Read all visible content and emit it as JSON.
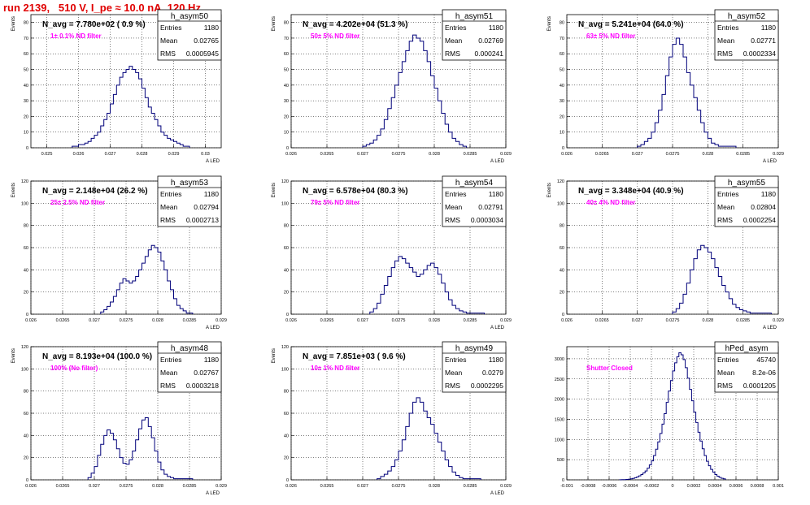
{
  "title": "run 2139,   510 V, I_pe ≈ 10.0 nA, 120 Hz",
  "chart_data": [
    {
      "type": "bar",
      "hist_name": "h_asym50",
      "stats": [
        [
          "Entries",
          "1180"
        ],
        [
          "Mean",
          "0.02765"
        ],
        [
          "RMS",
          "0.0005945"
        ]
      ],
      "n_avg": "N_avg = 7.780e+02 ( 0.9 %)",
      "filter": "1± 0.1% ND filter",
      "ylabel": "Events",
      "xlabel": "A_LED",
      "xlim": [
        0.0245,
        0.0305
      ],
      "ylim": [
        0,
        85
      ],
      "xticks": [
        0.025,
        0.026,
        0.027,
        0.028,
        0.029,
        0.03
      ],
      "xtick_labels": [
        "0.025",
        "0.026",
        "0.027",
        "0.028",
        "0.029",
        "0.03"
      ],
      "yticks": [
        0,
        10,
        20,
        30,
        40,
        50,
        60,
        70,
        80
      ],
      "yticks_labels": [
        "0",
        "10",
        "20",
        "30",
        "40",
        "50",
        "60",
        "70",
        "80"
      ],
      "bins": {
        "min": 0.0258,
        "max": 0.0295,
        "width": 0.0001,
        "counts": [
          1,
          1,
          2,
          2,
          3,
          4,
          6,
          8,
          10,
          14,
          18,
          22,
          28,
          34,
          40,
          45,
          48,
          50,
          52,
          50,
          48,
          44,
          38,
          32,
          26,
          22,
          18,
          14,
          10,
          8,
          6,
          5,
          4,
          3,
          2,
          1,
          1
        ]
      }
    },
    {
      "type": "bar",
      "hist_name": "h_asym51",
      "stats": [
        [
          "Entries",
          "1180"
        ],
        [
          "Mean",
          "0.02769"
        ],
        [
          "RMS",
          "0.000241"
        ]
      ],
      "n_avg": "N_avg = 4.202e+04 (51.3 %)",
      "filter": "50± 5% ND filter",
      "ylabel": "Events",
      "xlabel": "A_LED",
      "xlim": [
        0.026,
        0.029
      ],
      "ylim": [
        0,
        85
      ],
      "xticks": [
        0.026,
        0.0265,
        0.027,
        0.0275,
        0.028,
        0.0285,
        0.029
      ],
      "xtick_labels": [
        "0.026",
        "0.0265",
        "0.027",
        "0.0275",
        "0.028",
        "0.0285",
        "0.029"
      ],
      "yticks": [
        0,
        10,
        20,
        30,
        40,
        50,
        60,
        70,
        80
      ],
      "yticks_labels": [
        "0",
        "10",
        "20",
        "30",
        "40",
        "50",
        "60",
        "70",
        "80"
      ],
      "bins": {
        "min": 0.027,
        "max": 0.02845,
        "width": 5e-05,
        "counts": [
          1,
          2,
          3,
          5,
          8,
          12,
          18,
          25,
          32,
          40,
          48,
          55,
          62,
          68,
          72,
          70,
          68,
          62,
          55,
          46,
          38,
          30,
          22,
          15,
          10,
          6,
          4,
          2,
          1
        ]
      }
    },
    {
      "type": "bar",
      "hist_name": "h_asym52",
      "stats": [
        [
          "Entries",
          "1180"
        ],
        [
          "Mean",
          "0.02771"
        ],
        [
          "RMS",
          "0.0002334"
        ]
      ],
      "n_avg": "N_avg = 5.241e+04 (64.0 %)",
      "filter": "63± 5% ND filter",
      "ylabel": "Events",
      "xlabel": "A_LED",
      "xlim": [
        0.026,
        0.029
      ],
      "ylim": [
        0,
        85
      ],
      "xticks": [
        0.026,
        0.0265,
        0.027,
        0.0275,
        0.028,
        0.0285,
        0.029
      ],
      "xtick_labels": [
        "0.026",
        "0.0265",
        "0.027",
        "0.0275",
        "0.028",
        "0.0285",
        "0.029"
      ],
      "yticks": [
        0,
        10,
        20,
        30,
        40,
        50,
        60,
        70,
        80
      ],
      "yticks_labels": [
        "0",
        "10",
        "20",
        "30",
        "40",
        "50",
        "60",
        "70",
        "80"
      ],
      "bins": {
        "min": 0.027,
        "max": 0.0284,
        "width": 5e-05,
        "counts": [
          1,
          2,
          4,
          6,
          10,
          16,
          24,
          34,
          46,
          58,
          66,
          70,
          66,
          58,
          48,
          40,
          32,
          24,
          16,
          10,
          6,
          3,
          2,
          1,
          1,
          1,
          1,
          1
        ]
      }
    },
    {
      "type": "bar",
      "hist_name": "h_asym53",
      "stats": [
        [
          "Entries",
          "1180"
        ],
        [
          "Mean",
          "0.02794"
        ],
        [
          "RMS",
          "0.0002713"
        ]
      ],
      "n_avg": "N_avg = 2.148e+04 (26.2 %)",
      "filter": "25± 2.5% ND filter",
      "ylabel": "Events",
      "xlabel": "A_LED",
      "xlim": [
        0.026,
        0.029
      ],
      "ylim": [
        0,
        120
      ],
      "xticks": [
        0.026,
        0.0265,
        0.027,
        0.0275,
        0.028,
        0.0285,
        0.029
      ],
      "xtick_labels": [
        "0.026",
        "0.0265",
        "0.027",
        "0.0275",
        "0.028",
        "0.0285",
        "0.029"
      ],
      "yticks": [
        0,
        20,
        40,
        60,
        80,
        100,
        120
      ],
      "yticks_labels": [
        "0",
        "20",
        "40",
        "60",
        "80",
        "100",
        "120"
      ],
      "bins": {
        "min": 0.0271,
        "max": 0.02855,
        "width": 5e-05,
        "counts": [
          2,
          4,
          7,
          11,
          16,
          22,
          28,
          32,
          30,
          28,
          30,
          34,
          40,
          46,
          52,
          58,
          62,
          60,
          56,
          48,
          40,
          30,
          22,
          14,
          8,
          5,
          3,
          1,
          1
        ]
      }
    },
    {
      "type": "bar",
      "hist_name": "h_asym54",
      "stats": [
        [
          "Entries",
          "1180"
        ],
        [
          "Mean",
          "0.02791"
        ],
        [
          "RMS",
          "0.0003034"
        ]
      ],
      "n_avg": "N_avg = 6.578e+04 (80.3 %)",
      "filter": "79± 5% ND filter",
      "ylabel": "Events",
      "xlabel": "A_LED",
      "xlim": [
        0.026,
        0.029
      ],
      "ylim": [
        0,
        120
      ],
      "xticks": [
        0.026,
        0.0265,
        0.027,
        0.0275,
        0.028,
        0.0285,
        0.029
      ],
      "xtick_labels": [
        "0.026",
        "0.0265",
        "0.027",
        "0.0275",
        "0.028",
        "0.0285",
        "0.029"
      ],
      "yticks": [
        0,
        20,
        40,
        60,
        80,
        100,
        120
      ],
      "yticks_labels": [
        "0",
        "20",
        "40",
        "60",
        "80",
        "100",
        "120"
      ],
      "bins": {
        "min": 0.0271,
        "max": 0.0287,
        "width": 5e-05,
        "counts": [
          2,
          5,
          10,
          18,
          26,
          34,
          42,
          48,
          52,
          50,
          46,
          42,
          38,
          34,
          36,
          40,
          44,
          46,
          42,
          36,
          28,
          20,
          13,
          8,
          5,
          3,
          2,
          1,
          1,
          1,
          1,
          1
        ]
      }
    },
    {
      "type": "bar",
      "hist_name": "h_asym55",
      "stats": [
        [
          "Entries",
          "1180"
        ],
        [
          "Mean",
          "0.02804"
        ],
        [
          "RMS",
          "0.0002254"
        ]
      ],
      "n_avg": "N_avg = 3.348e+04 (40.9 %)",
      "filter": "40± 4% ND filter",
      "ylabel": "Events",
      "xlabel": "A_LED",
      "xlim": [
        0.026,
        0.029
      ],
      "ylim": [
        0,
        120
      ],
      "xticks": [
        0.026,
        0.0265,
        0.027,
        0.0275,
        0.028,
        0.0285,
        0.029
      ],
      "xtick_labels": [
        "0.026",
        "0.0265",
        "0.027",
        "0.0275",
        "0.028",
        "0.0285",
        "0.029"
      ],
      "yticks": [
        0,
        20,
        40,
        60,
        80,
        100,
        120
      ],
      "yticks_labels": [
        "0",
        "20",
        "40",
        "60",
        "80",
        "100",
        "120"
      ],
      "bins": {
        "min": 0.0275,
        "max": 0.0289,
        "width": 5e-05,
        "counts": [
          2,
          5,
          10,
          18,
          28,
          40,
          50,
          58,
          62,
          60,
          56,
          50,
          42,
          34,
          26,
          20,
          14,
          9,
          6,
          4,
          3,
          2,
          1,
          1,
          1,
          1,
          1,
          1
        ]
      }
    },
    {
      "type": "bar",
      "hist_name": "h_asym48",
      "stats": [
        [
          "Entries",
          "1180"
        ],
        [
          "Mean",
          "0.02767"
        ],
        [
          "RMS",
          "0.0003218"
        ]
      ],
      "n_avg": "N_avg = 8.193e+04 (100.0 %)",
      "filter": "100% (No filter)",
      "ylabel": "Events",
      "xlabel": "A_LED",
      "xlim": [
        0.026,
        0.029
      ],
      "ylim": [
        0,
        120
      ],
      "xticks": [
        0.026,
        0.0265,
        0.027,
        0.0275,
        0.028,
        0.0285,
        0.029
      ],
      "xtick_labels": [
        "0.026",
        "0.0265",
        "0.027",
        "0.0275",
        "0.028",
        "0.0285",
        "0.029"
      ],
      "yticks": [
        0,
        20,
        40,
        60,
        80,
        100,
        120
      ],
      "yticks_labels": [
        "0",
        "20",
        "40",
        "60",
        "80",
        "100",
        "120"
      ],
      "bins": {
        "min": 0.0269,
        "max": 0.02855,
        "width": 5e-05,
        "counts": [
          2,
          6,
          12,
          22,
          32,
          40,
          45,
          42,
          36,
          28,
          20,
          15,
          14,
          18,
          26,
          36,
          46,
          54,
          56,
          48,
          38,
          26,
          16,
          9,
          5,
          3,
          2,
          1,
          1,
          1,
          1,
          1,
          1
        ]
      }
    },
    {
      "type": "bar",
      "hist_name": "h_asym49",
      "stats": [
        [
          "Entries",
          "1180"
        ],
        [
          "Mean",
          "0.0279"
        ],
        [
          "RMS",
          "0.0002295"
        ]
      ],
      "n_avg": "N_avg = 7.851e+03 ( 9.6 %)",
      "filter": "10± 1% ND filter",
      "ylabel": "Events",
      "xlabel": "A_LED",
      "xlim": [
        0.026,
        0.029
      ],
      "ylim": [
        0,
        120
      ],
      "xticks": [
        0.026,
        0.0265,
        0.027,
        0.0275,
        0.028,
        0.0285,
        0.029
      ],
      "xtick_labels": [
        "0.026",
        "0.0265",
        "0.027",
        "0.0275",
        "0.028",
        "0.0285",
        "0.029"
      ],
      "yticks": [
        0,
        20,
        40,
        60,
        80,
        100,
        120
      ],
      "yticks_labels": [
        "0",
        "20",
        "40",
        "60",
        "80",
        "100",
        "120"
      ],
      "bins": {
        "min": 0.0272,
        "max": 0.02865,
        "width": 5e-05,
        "counts": [
          1,
          3,
          5,
          8,
          12,
          18,
          26,
          36,
          48,
          60,
          70,
          74,
          70,
          62,
          56,
          50,
          42,
          34,
          26,
          18,
          12,
          7,
          4,
          2,
          1,
          1,
          1,
          1,
          1
        ]
      }
    },
    {
      "type": "bar",
      "hist_name": "hPed_asym",
      "stats": [
        [
          "Entries",
          "45740"
        ],
        [
          "Mean",
          "8.2e-06"
        ],
        [
          "RMS",
          "0.0001205"
        ]
      ],
      "n_avg": "",
      "filter": "Shutter Closed",
      "ylabel": "",
      "xlabel": "",
      "xlim": [
        -0.001,
        0.001
      ],
      "ylim": [
        0,
        3300
      ],
      "xticks": [
        -0.001,
        -0.0008,
        -0.0006,
        -0.0004,
        -0.0002,
        0,
        0.0002,
        0.0004,
        0.0006,
        0.0008,
        0.001
      ],
      "xtick_labels": [
        "-0.001",
        "-0.0008",
        "-0.0006",
        "-0.0004",
        "-0.0002",
        "0",
        "0.0002",
        "0.0004",
        "0.0006",
        "0.0008",
        "0.001"
      ],
      "yticks": [
        0,
        500,
        1000,
        1500,
        2000,
        2500,
        3000
      ],
      "yticks_labels": [
        "0",
        "500",
        "1000",
        "1500",
        "2000",
        "2500",
        "3000"
      ],
      "bins": {
        "min": -0.0005,
        "max": 0.0005,
        "width": 2e-05,
        "counts": [
          2,
          4,
          6,
          10,
          16,
          24,
          36,
          52,
          72,
          98,
          130,
          170,
          220,
          290,
          370,
          470,
          600,
          760,
          940,
          1150,
          1380,
          1640,
          1920,
          2200,
          2460,
          2700,
          2900,
          3050,
          3150,
          3100,
          2980,
          2780,
          2520,
          2240,
          1960,
          1680,
          1420,
          1180,
          960,
          770,
          600,
          460,
          350,
          260,
          190,
          130,
          90,
          60,
          38,
          24
        ]
      }
    }
  ]
}
